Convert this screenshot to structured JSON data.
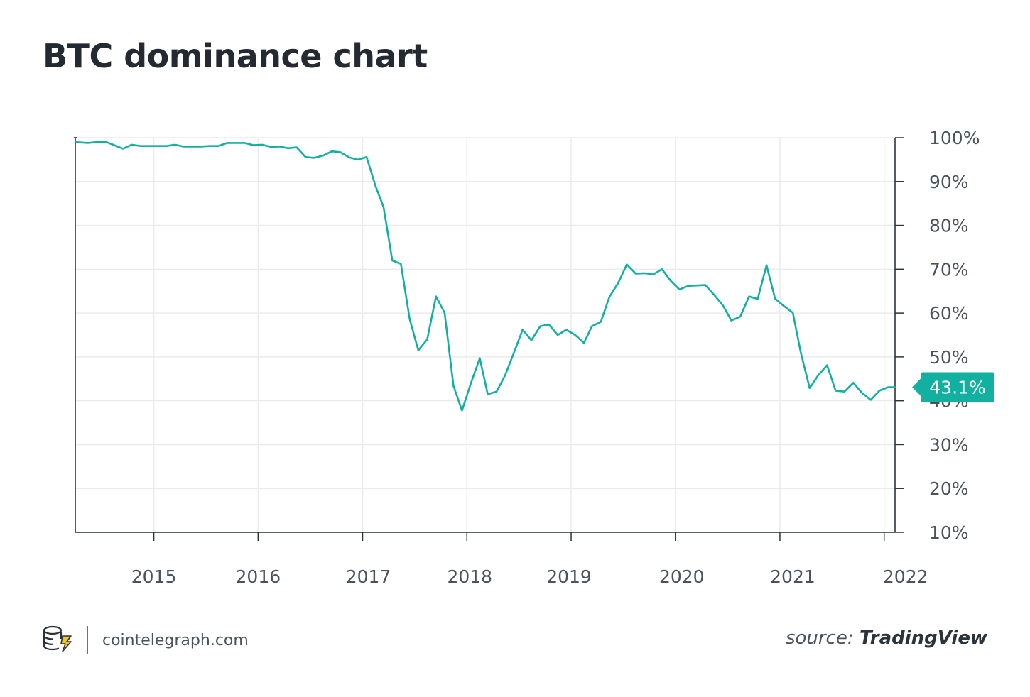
{
  "title": "BTC dominance chart",
  "footer": {
    "site": "cointelegraph.com",
    "logo_icon": "cointelegraph-coin-logo-icon",
    "source_prefix": "source:",
    "source_name": "TradingView"
  },
  "colors": {
    "line": "#12b0a0",
    "grid": "#ebebeb",
    "axis": "#2b333b",
    "badge": "#12b0a0"
  },
  "chart_data": {
    "type": "line",
    "title": "",
    "xlabel": "",
    "ylabel": "",
    "ylim": [
      10,
      100
    ],
    "xlim": [
      "2014-04-01",
      "2022-02-08"
    ],
    "grid": true,
    "y_axis_position": "right",
    "y_ticks": [
      10,
      20,
      30,
      40,
      50,
      60,
      70,
      80,
      90,
      100
    ],
    "y_tick_labels": [
      "10%",
      "20%",
      "30%",
      "40%",
      "50%",
      "60%",
      "70%",
      "80%",
      "90%",
      "100%"
    ],
    "x_ticks": [
      "2015-01-01",
      "2016-01-01",
      "2017-01-01",
      "2018-01-01",
      "2019-01-01",
      "2020-01-01",
      "2021-01-01",
      "2022-01-01"
    ],
    "x_tick_labels": [
      "2015",
      "2016",
      "2017",
      "2018",
      "2019",
      "2020",
      "2021",
      "2022"
    ],
    "last_value_label": "43.1%",
    "series": [
      {
        "x": [
          "2014-04-01",
          "2014-05-15",
          "2014-06-15",
          "2014-07-15",
          "2014-08-15",
          "2014-09-15",
          "2014-10-15",
          "2014-11-15",
          "2014-12-15",
          "2015-01-15",
          "2015-02-15",
          "2015-03-15",
          "2015-04-15",
          "2015-05-15",
          "2015-06-15",
          "2015-07-15",
          "2015-08-15",
          "2015-09-15",
          "2015-10-15",
          "2015-11-15",
          "2015-12-15",
          "2016-01-15",
          "2016-02-15",
          "2016-03-15",
          "2016-04-15",
          "2016-05-15",
          "2016-06-15",
          "2016-07-15",
          "2016-08-15",
          "2016-09-15",
          "2016-10-15",
          "2016-11-15",
          "2016-12-15",
          "2017-01-15",
          "2017-02-15",
          "2017-03-15",
          "2017-04-15",
          "2017-05-15",
          "2017-06-15",
          "2017-07-15",
          "2017-08-15",
          "2017-09-15",
          "2017-10-15",
          "2017-11-15",
          "2017-12-15",
          "2018-01-15",
          "2018-02-15",
          "2018-03-15",
          "2018-04-15",
          "2018-05-15",
          "2018-06-15",
          "2018-07-15",
          "2018-08-15",
          "2018-09-15",
          "2018-10-15",
          "2018-11-15",
          "2018-12-15",
          "2019-01-15",
          "2019-02-15",
          "2019-03-15",
          "2019-04-15",
          "2019-05-15",
          "2019-06-15",
          "2019-07-15",
          "2019-08-15",
          "2019-09-15",
          "2019-10-15",
          "2019-11-15",
          "2019-12-15",
          "2020-01-15",
          "2020-02-15",
          "2020-03-15",
          "2020-04-15",
          "2020-05-15",
          "2020-06-15",
          "2020-07-15",
          "2020-08-15",
          "2020-09-15",
          "2020-10-15",
          "2020-11-15",
          "2020-12-15",
          "2021-01-15",
          "2021-02-15",
          "2021-03-15",
          "2021-04-15",
          "2021-05-15",
          "2021-06-15",
          "2021-07-15",
          "2021-08-15",
          "2021-09-15",
          "2021-10-15",
          "2021-11-15",
          "2021-12-15",
          "2022-01-15",
          "2022-02-08"
        ],
        "values": [
          99.0,
          98.8,
          99.0,
          99.1,
          98.3,
          97.5,
          98.4,
          98.1,
          98.1,
          98.1,
          98.1,
          98.4,
          98.0,
          98.0,
          98.0,
          98.1,
          98.1,
          98.8,
          98.8,
          98.8,
          98.3,
          98.4,
          97.9,
          98.0,
          97.6,
          97.8,
          95.6,
          95.4,
          95.9,
          96.9,
          96.7,
          95.5,
          95.0,
          95.6,
          89.0,
          84.2,
          72.0,
          71.2,
          58.6,
          51.5,
          54.0,
          63.8,
          60.1,
          43.4,
          37.8,
          44.0,
          49.7,
          41.5,
          42.1,
          45.8,
          51.0,
          56.2,
          53.8,
          57.0,
          57.4,
          55.0,
          56.2,
          55.0,
          53.2,
          57.0,
          58.0,
          63.7,
          66.9,
          71.1,
          69.0,
          69.1,
          68.8,
          70.0,
          67.4,
          65.4,
          66.2,
          66.3,
          66.4,
          64.2,
          61.8,
          58.3,
          59.2,
          63.8,
          63.2,
          70.9,
          63.3,
          61.6,
          60.1,
          51.0,
          42.9,
          45.8,
          48.1,
          42.3,
          42.1,
          44.1,
          41.8,
          40.2,
          42.3,
          43.1,
          43.1
        ]
      }
    ]
  }
}
